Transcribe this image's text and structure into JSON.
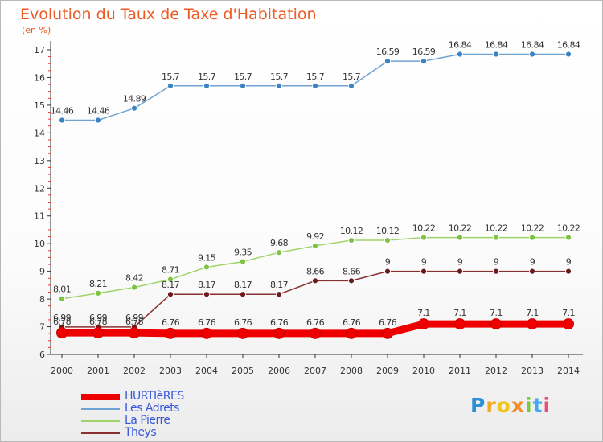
{
  "header": {
    "title": "Evolution du Taux de Taxe d'Habitation",
    "unit": "(en %)"
  },
  "brand": {
    "text": "Proxiti",
    "letter_colors": [
      "#2a8fd6",
      "#f5a623",
      "#f0c419",
      "#f28c28",
      "#7ac943",
      "#3fa9f5",
      "#e94e77"
    ]
  },
  "chart_data": {
    "type": "line",
    "x": [
      "2000",
      "2001",
      "2002",
      "2003",
      "2004",
      "2005",
      "2006",
      "2007",
      "2008",
      "2009",
      "2010",
      "2011",
      "2012",
      "2013",
      "2014"
    ],
    "ylim": [
      6,
      17
    ],
    "yticks": [
      "6",
      "7",
      "8",
      "9",
      "10",
      "11",
      "12",
      "13",
      "14",
      "15",
      "16",
      "17"
    ],
    "grid": false,
    "series": [
      {
        "name": "Les Adrets",
        "color": "#6ea3d3",
        "marker": "#3a82c2",
        "values": [
          14.46,
          14.46,
          14.89,
          15.7,
          15.7,
          15.7,
          15.7,
          15.7,
          15.7,
          16.59,
          16.59,
          16.84,
          16.84,
          16.84,
          16.84
        ],
        "labels": [
          "14.46",
          "14.46",
          "14.89",
          "15.7",
          "15.7",
          "15.7",
          "15.7",
          "15.7",
          "15.7",
          "16.59",
          "16.59",
          "16.84",
          "16.84",
          "16.84",
          "16.84"
        ]
      },
      {
        "name": "La Pierre",
        "color": "#9fd46a",
        "marker": "#7cc243",
        "values": [
          8.01,
          8.21,
          8.42,
          8.71,
          9.15,
          9.35,
          9.68,
          9.92,
          10.12,
          10.12,
          10.22,
          10.22,
          10.22,
          10.22,
          10.22
        ],
        "labels": [
          "8.01",
          "8.21",
          "8.42",
          "8.71",
          "9.15",
          "9.35",
          "9.68",
          "9.92",
          "10.12",
          "10.12",
          "10.22",
          "10.22",
          "10.22",
          "10.22",
          "10.22"
        ]
      },
      {
        "name": "Theys",
        "color": "#8b3030",
        "marker": "#6b1a1a",
        "values": [
          6.99,
          6.99,
          6.99,
          8.17,
          8.17,
          8.17,
          8.17,
          8.66,
          8.66,
          9,
          9,
          9,
          9,
          9,
          9
        ],
        "labels": [
          "6.99",
          "6.99",
          "6.99",
          "8.17",
          "8.17",
          "8.17",
          "8.17",
          "8.66",
          "8.66",
          "9",
          "9",
          "9",
          "9",
          "9",
          "9"
        ]
      },
      {
        "name": "HURTIèRES",
        "color": "#ee0000",
        "marker": "#ee0000",
        "bold": true,
        "values": [
          6.78,
          6.78,
          6.78,
          6.76,
          6.76,
          6.76,
          6.76,
          6.76,
          6.76,
          6.76,
          7.1,
          7.1,
          7.1,
          7.1,
          7.1
        ],
        "labels": [
          "6.78",
          "6.78",
          "6.78",
          "6.76",
          "6.76",
          "6.76",
          "6.76",
          "6.76",
          "6.76",
          "6.76",
          "7.1",
          "7.1",
          "7.1",
          "7.1",
          "7.1"
        ]
      }
    ],
    "legend": {
      "placement": "bottom-left",
      "order": [
        "HURTIèRES",
        "Les Adrets",
        "La Pierre",
        "Theys"
      ]
    }
  }
}
